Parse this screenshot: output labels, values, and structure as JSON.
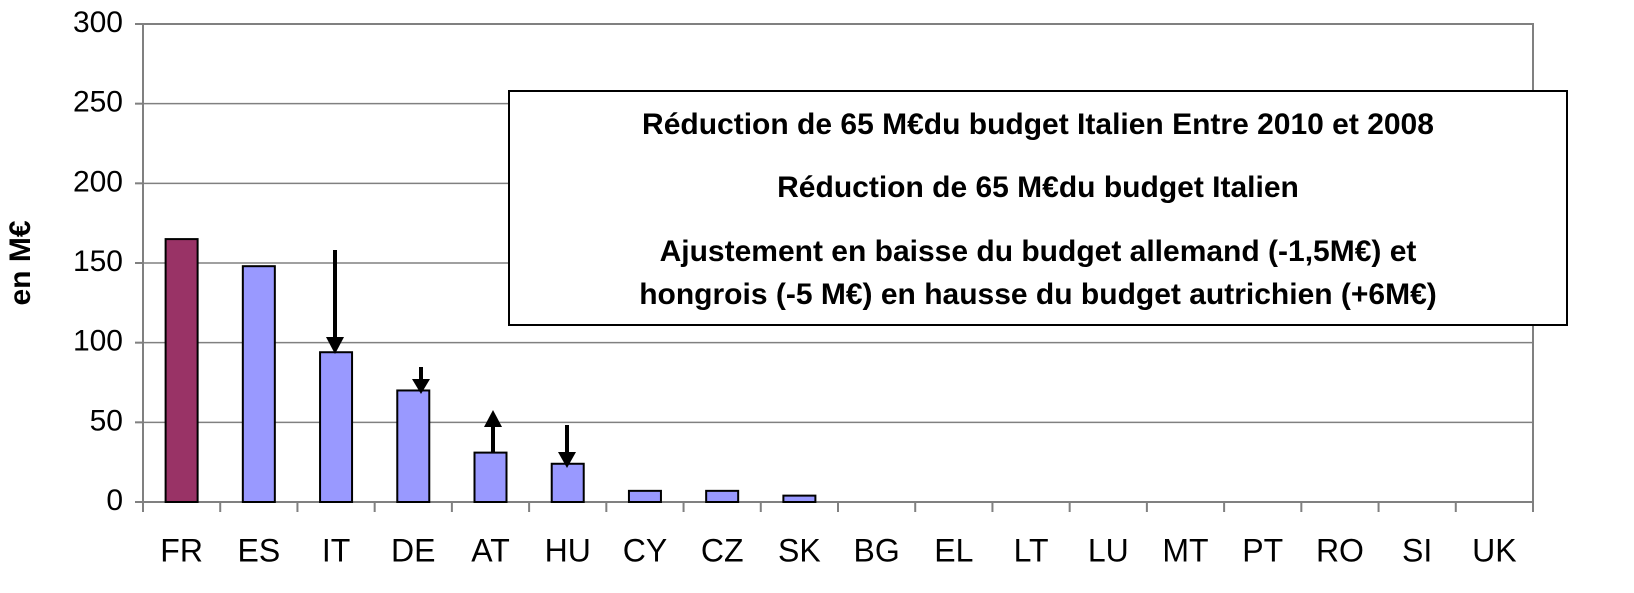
{
  "chart_data": {
    "type": "bar",
    "y_label": "en M€",
    "categories": [
      "FR",
      "ES",
      "IT",
      "DE",
      "AT",
      "HU",
      "CY",
      "CZ",
      "SK",
      "BG",
      "EL",
      "LT",
      "LU",
      "MT",
      "PT",
      "RO",
      "SI",
      "UK"
    ],
    "values": [
      165,
      148,
      94,
      70,
      31,
      24,
      7,
      7,
      4,
      0,
      0,
      0,
      0,
      0,
      0,
      0,
      0,
      0
    ],
    "colors": [
      "#993366",
      "#9999ff",
      "#9999ff",
      "#9999ff",
      "#9999ff",
      "#9999ff",
      "#9999ff",
      "#9999ff",
      "#9999ff",
      "#9999ff",
      "#9999ff",
      "#9999ff",
      "#9999ff",
      "#9999ff",
      "#9999ff",
      "#9999ff",
      "#9999ff",
      "#9999ff"
    ],
    "ylim": [
      0,
      300
    ],
    "yticks": [
      0,
      50,
      100,
      150,
      200,
      250,
      300
    ],
    "grid": true,
    "annotations": [
      "Réduction de 65 M€du budget Italien Entre 2010 et 2008",
      "Réduction de 65 M€du budget Italien",
      "Ajustement en baisse du budget allemand (-1,5M€) et",
      "hongrois (-5 M€) en hausse du budget autrichien (+6M€)"
    ]
  }
}
